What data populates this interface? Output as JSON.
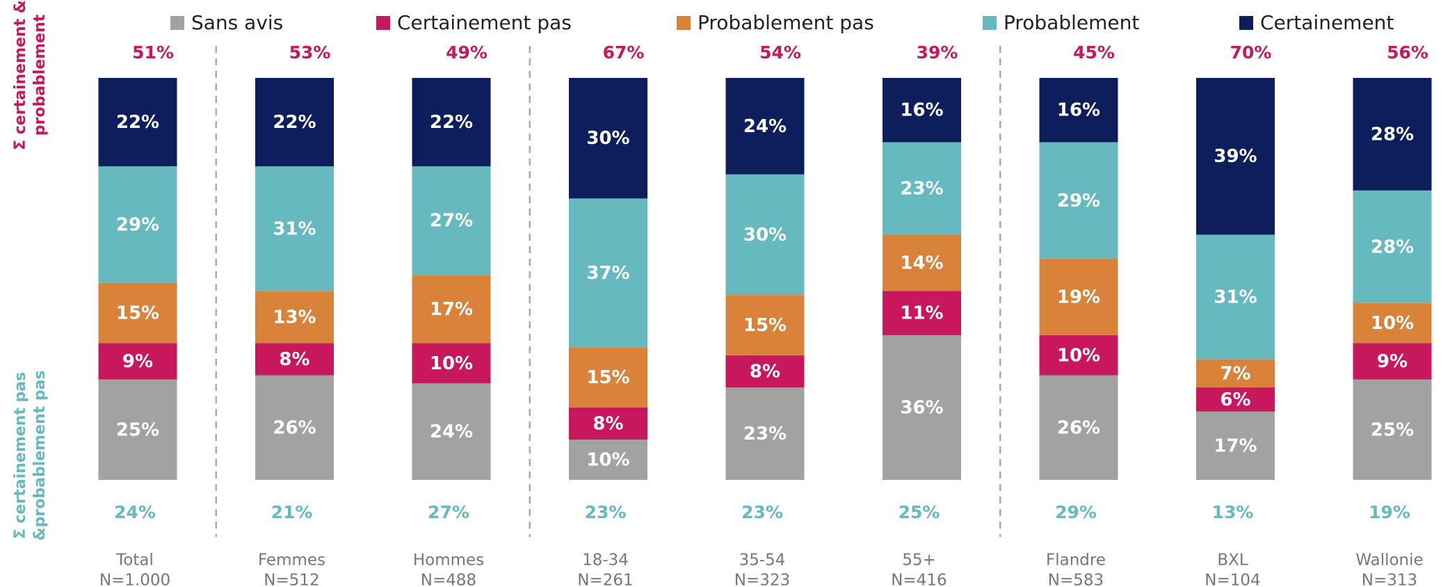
{
  "chart_data": {
    "type": "stacked_bar",
    "categories": [
      "Total",
      "Femmes",
      "Hommes",
      "18-34",
      "35-54",
      "55+",
      "Flandre",
      "BXL",
      "Wallonie"
    ],
    "sample_sizes": [
      "N=1.000",
      "N=512",
      "N=488",
      "N=261",
      "N=323",
      "N=416",
      "N=583",
      "N=104",
      "N=313"
    ],
    "ylim": [
      0,
      100
    ],
    "series": [
      {
        "name": "Sans avis",
        "color": "#a2a2a2",
        "values": [
          25,
          26,
          24,
          10,
          23,
          36,
          26,
          17,
          25
        ],
        "value_labels": [
          "25%",
          "26%",
          "24%",
          "10%",
          "23%",
          "36%",
          "26%",
          "17%",
          "25%"
        ]
      },
      {
        "name": "Certainement pas",
        "color": "#c8175d",
        "values": [
          9,
          8,
          10,
          8,
          8,
          11,
          10,
          6,
          9
        ],
        "value_labels": [
          "9%",
          "8%",
          "10%",
          "8%",
          "8%",
          "11%",
          "10%",
          "6%",
          "9%"
        ]
      },
      {
        "name": "Probablement pas",
        "color": "#d8823a",
        "values": [
          15,
          13,
          17,
          15,
          15,
          14,
          19,
          7,
          10
        ],
        "value_labels": [
          "15%",
          "13%",
          "17%",
          "15%",
          "15%",
          "14%",
          "19%",
          "7%",
          "10%"
        ]
      },
      {
        "name": "Probablement",
        "color": "#65b9bf",
        "values": [
          29,
          31,
          27,
          37,
          30,
          23,
          29,
          31,
          28
        ],
        "value_labels": [
          "29%",
          "31%",
          "27%",
          "37%",
          "30%",
          "23%",
          "29%",
          "31%",
          "28%"
        ]
      },
      {
        "name": "Certainement",
        "color": "#0c1f5c",
        "values": [
          22,
          22,
          22,
          30,
          24,
          16,
          16,
          39,
          28
        ],
        "value_labels": [
          "22%",
          "22%",
          "22%",
          "30%",
          "24%",
          "16%",
          "16%",
          "39%",
          "28%"
        ]
      }
    ],
    "top_totals": {
      "label": [
        "Σ certainement &",
        "probablement"
      ],
      "color": "#c8175d",
      "values": [
        51,
        53,
        49,
        67,
        54,
        39,
        45,
        70,
        56
      ],
      "value_labels": [
        "51%",
        "53%",
        "49%",
        "67%",
        "54%",
        "39%",
        "45%",
        "70%",
        "56%"
      ]
    },
    "bottom_totals": {
      "label": [
        "Σ certainement pas",
        "&probablement pas"
      ],
      "color": "#65b9bf",
      "values": [
        24,
        21,
        27,
        23,
        23,
        25,
        29,
        13,
        19
      ],
      "value_labels": [
        "24%",
        "21%",
        "27%",
        "23%",
        "23%",
        "25%",
        "29%",
        "13%",
        "19%"
      ]
    }
  }
}
